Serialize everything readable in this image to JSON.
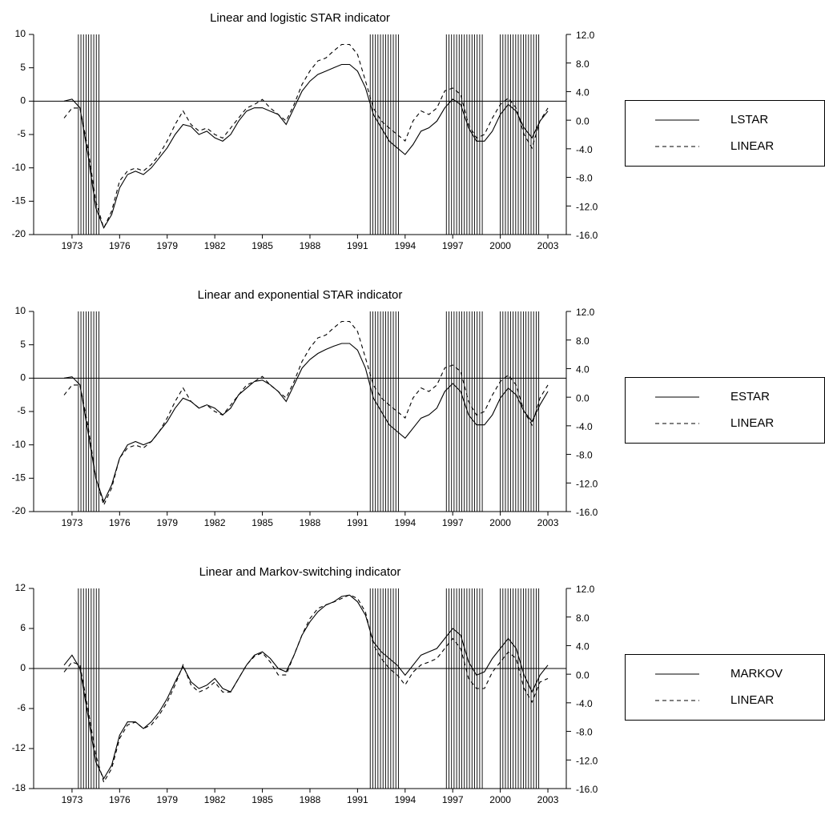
{
  "chart_data": [
    {
      "type": "line",
      "title": "Linear and logistic STAR indicator",
      "x": [
        1972.5,
        1973,
        1973.5,
        1974,
        1974.5,
        1975,
        1975.5,
        1976,
        1976.5,
        1977,
        1977.5,
        1978,
        1978.5,
        1979,
        1979.5,
        1980,
        1980.5,
        1981,
        1981.5,
        1982,
        1982.5,
        1983,
        1983.5,
        1984,
        1984.5,
        1985,
        1985.5,
        1986,
        1986.5,
        1987,
        1987.5,
        1988,
        1988.5,
        1989,
        1989.5,
        1990,
        1990.5,
        1991,
        1991.5,
        1992,
        1992.5,
        1993,
        1993.5,
        1994,
        1994.5,
        1995,
        1995.5,
        1996,
        1996.5,
        1997,
        1997.5,
        1998,
        1998.5,
        1999,
        1999.5,
        2000,
        2000.5,
        2001,
        2001.5,
        2002,
        2002.5,
        2003
      ],
      "xlim": [
        1970.58,
        2004.16
      ],
      "xticks": [
        1973,
        1976,
        1979,
        1982,
        1985,
        1988,
        1991,
        1994,
        1997,
        2000,
        2003
      ],
      "ylim": [
        -20,
        10
      ],
      "yticks": [
        -20,
        -15,
        -10,
        -5,
        0,
        5,
        10
      ],
      "y2lim": [
        -16,
        12
      ],
      "y2ticks": [
        {
          "value": -16,
          "label": "-16.0"
        },
        {
          "value": -12,
          "label": "-12.0"
        },
        {
          "value": -8,
          "label": "-8.0"
        },
        {
          "value": -4,
          "label": "-4.0"
        },
        {
          "value": 0,
          "label": "0.0"
        },
        {
          "value": 4,
          "label": "4.0"
        },
        {
          "value": 8,
          "label": "8.0"
        },
        {
          "value": 12,
          "label": "12.0"
        }
      ],
      "reference_line": 0,
      "legend": "right",
      "shaded": [
        [
          1973.4,
          1974.7
        ],
        [
          1991.8,
          1993.6
        ],
        [
          1996.6,
          1999.0
        ],
        [
          2000.0,
          2002.5
        ]
      ],
      "series": [
        {
          "name": "LSTAR",
          "color": "#000000",
          "dash": "solid",
          "values": [
            0,
            0.3,
            -1,
            -8,
            -16,
            -19,
            -17,
            -13,
            -11,
            -10.5,
            -11,
            -10,
            -8.5,
            -7,
            -5,
            -3.5,
            -3.8,
            -5,
            -4.5,
            -5.5,
            -6,
            -5,
            -3,
            -1.5,
            -1,
            -1,
            -1.5,
            -2,
            -3.5,
            -1,
            1.5,
            3,
            4,
            4.5,
            5,
            5.5,
            5.5,
            4.5,
            2,
            -2,
            -4,
            -6,
            -7,
            -8,
            -6.5,
            -4.5,
            -4,
            -3,
            -1,
            0.3,
            -0.5,
            -4,
            -6,
            -6,
            -4.5,
            -2,
            -0.5,
            -1.5,
            -4,
            -5.5,
            -3,
            -1.5
          ]
        },
        {
          "name": "LINEAR",
          "color": "#000000",
          "dash": "dashed",
          "axis": "y2",
          "values": [
            0.3,
            1.7,
            1.7,
            -3.9,
            -11.3,
            -15.1,
            -12.7,
            -8.5,
            -7.1,
            -6.7,
            -7.1,
            -6.2,
            -4.8,
            -2.9,
            -0.6,
            1.3,
            -0.6,
            -1.5,
            -1.1,
            -2.0,
            -2.5,
            -1.1,
            0.3,
            1.7,
            2.2,
            2.9,
            1.7,
            0.8,
            -0.1,
            2.2,
            5.0,
            6.9,
            8.3,
            8.7,
            9.7,
            10.6,
            10.6,
            9.2,
            5.5,
            1.7,
            -0.1,
            -1.1,
            -2.0,
            -2.9,
            -0.1,
            1.3,
            0.8,
            1.7,
            4.1,
            4.5,
            3.6,
            -0.6,
            -2.5,
            -2.0,
            0.3,
            2.2,
            3.1,
            1.7,
            -2.0,
            -3.9,
            -0.1,
            1.7
          ]
        }
      ]
    },
    {
      "type": "line",
      "title": "Linear and exponential STAR indicator",
      "x": [
        1972.5,
        1973,
        1973.5,
        1974,
        1974.5,
        1975,
        1975.5,
        1976,
        1976.5,
        1977,
        1977.5,
        1978,
        1978.5,
        1979,
        1979.5,
        1980,
        1980.5,
        1981,
        1981.5,
        1982,
        1982.5,
        1983,
        1983.5,
        1984,
        1984.5,
        1985,
        1985.5,
        1986,
        1986.5,
        1987,
        1987.5,
        1988,
        1988.5,
        1989,
        1989.5,
        1990,
        1990.5,
        1991,
        1991.5,
        1992,
        1992.5,
        1993,
        1993.5,
        1994,
        1994.5,
        1995,
        1995.5,
        1996,
        1996.5,
        1997,
        1997.5,
        1998,
        1998.5,
        1999,
        1999.5,
        2000,
        2000.5,
        2001,
        2001.5,
        2002,
        2002.5,
        2003
      ],
      "xlim": [
        1970.58,
        2004.16
      ],
      "xticks": [
        1973,
        1976,
        1979,
        1982,
        1985,
        1988,
        1991,
        1994,
        1997,
        2000,
        2003
      ],
      "ylim": [
        -20,
        10
      ],
      "yticks": [
        -20,
        -15,
        -10,
        -5,
        0,
        5,
        10
      ],
      "y2lim": [
        -16,
        12
      ],
      "y2ticks": [
        {
          "value": -16,
          "label": "-16.0"
        },
        {
          "value": -12,
          "label": "-12.0"
        },
        {
          "value": -8,
          "label": "-8.0"
        },
        {
          "value": -4,
          "label": "-4.0"
        },
        {
          "value": 0,
          "label": "0.0"
        },
        {
          "value": 4,
          "label": "4.0"
        },
        {
          "value": 8,
          "label": "8.0"
        },
        {
          "value": 12,
          "label": "12.0"
        }
      ],
      "reference_line": 0,
      "legend": "right",
      "shaded": [
        [
          1973.4,
          1974.7
        ],
        [
          1991.8,
          1993.6
        ],
        [
          1996.6,
          1999.0
        ],
        [
          2000.0,
          2002.5
        ]
      ],
      "series": [
        {
          "name": "ESTAR",
          "color": "#000000",
          "dash": "solid",
          "values": [
            0,
            0.2,
            -1,
            -8,
            -15,
            -18.5,
            -16,
            -12,
            -10,
            -9.5,
            -10,
            -9.5,
            -8,
            -6.5,
            -4.5,
            -3,
            -3.5,
            -4.5,
            -4,
            -4.5,
            -5.5,
            -4.5,
            -2.5,
            -1.5,
            -0.5,
            -0.3,
            -1,
            -2,
            -3.5,
            -1,
            1.5,
            2.8,
            3.7,
            4.3,
            4.8,
            5.2,
            5.2,
            4.2,
            1.5,
            -3,
            -5,
            -7,
            -8,
            -9,
            -7.5,
            -6,
            -5.5,
            -4.5,
            -2,
            -0.8,
            -2,
            -5.5,
            -7,
            -7,
            -5.5,
            -3,
            -1.5,
            -2.5,
            -5,
            -6.5,
            -4,
            -2
          ]
        },
        {
          "name": "LINEAR",
          "color": "#000000",
          "dash": "dashed",
          "axis": "y2",
          "values": [
            0.3,
            1.7,
            1.7,
            -3.9,
            -11.3,
            -15.1,
            -12.7,
            -8.5,
            -7.1,
            -6.7,
            -7.1,
            -6.2,
            -4.8,
            -2.9,
            -0.6,
            1.3,
            -0.6,
            -1.5,
            -1.1,
            -2.0,
            -2.5,
            -1.1,
            0.3,
            1.7,
            2.2,
            2.9,
            1.7,
            0.8,
            -0.1,
            2.2,
            5.0,
            6.9,
            8.3,
            8.7,
            9.7,
            10.6,
            10.6,
            9.2,
            5.5,
            1.7,
            -0.1,
            -1.1,
            -2.0,
            -2.9,
            -0.1,
            1.3,
            0.8,
            1.7,
            4.1,
            4.5,
            3.6,
            -0.6,
            -2.5,
            -2.0,
            0.3,
            2.2,
            3.1,
            1.7,
            -2.0,
            -3.9,
            -0.1,
            1.7
          ]
        }
      ]
    },
    {
      "type": "line",
      "title": "Linear and Markov-switching indicator",
      "x": [
        1972.5,
        1973,
        1973.5,
        1974,
        1974.5,
        1975,
        1975.5,
        1976,
        1976.5,
        1977,
        1977.5,
        1978,
        1978.5,
        1979,
        1979.5,
        1980,
        1980.5,
        1981,
        1981.5,
        1982,
        1982.5,
        1983,
        1983.5,
        1984,
        1984.5,
        1985,
        1985.5,
        1986,
        1986.5,
        1987,
        1987.5,
        1988,
        1988.5,
        1989,
        1989.5,
        1990,
        1990.5,
        1991,
        1991.5,
        1992,
        1992.5,
        1993,
        1993.5,
        1994,
        1994.5,
        1995,
        1995.5,
        1996,
        1996.5,
        1997,
        1997.5,
        1998,
        1998.5,
        1999,
        1999.5,
        2000,
        2000.5,
        2001,
        2001.5,
        2002,
        2002.5,
        2003
      ],
      "xlim": [
        1970.58,
        2004.16
      ],
      "xticks": [
        1973,
        1976,
        1979,
        1982,
        1985,
        1988,
        1991,
        1994,
        1997,
        2000,
        2003
      ],
      "ylim": [
        -18,
        12
      ],
      "yticks": [
        -18,
        -12,
        -6,
        0,
        6,
        12
      ],
      "y2lim": [
        -16,
        12
      ],
      "y2ticks": [
        {
          "value": -16,
          "label": "-16.0"
        },
        {
          "value": -12,
          "label": "-12.0"
        },
        {
          "value": -8,
          "label": "-8.0"
        },
        {
          "value": -4,
          "label": "-4.0"
        },
        {
          "value": 0,
          "label": "0.0"
        },
        {
          "value": 4,
          "label": "4.0"
        },
        {
          "value": 8,
          "label": "8.0"
        },
        {
          "value": 12,
          "label": "12.0"
        }
      ],
      "reference_line": 0,
      "legend": "right",
      "shaded": [
        [
          1973.4,
          1974.7
        ],
        [
          1991.8,
          1993.6
        ],
        [
          1996.6,
          1999.0
        ],
        [
          2000.0,
          2002.5
        ]
      ],
      "series": [
        {
          "name": "MARKOV",
          "color": "#000000",
          "dash": "solid",
          "values": [
            0.5,
            2,
            0,
            -7,
            -14,
            -16.5,
            -14.5,
            -10,
            -8,
            -8,
            -9,
            -8,
            -6.5,
            -4.5,
            -2,
            0.3,
            -2,
            -3,
            -2.5,
            -1.5,
            -3,
            -3.5,
            -1.5,
            0.5,
            2,
            2.5,
            1.5,
            0,
            -0.5,
            2,
            5,
            7,
            8.5,
            9.5,
            10,
            10.8,
            11,
            10,
            8,
            4,
            2.5,
            1.5,
            0.5,
            -1,
            0.5,
            2,
            2.5,
            3,
            4.5,
            6,
            5,
            1,
            -1,
            -0.5,
            1.5,
            3,
            4.5,
            3,
            -1,
            -3.5,
            -1,
            0.5
          ]
        },
        {
          "name": "LINEAR",
          "color": "#000000",
          "dash": "dashed",
          "axis": "y2",
          "values": [
            0.3,
            1.7,
            1.3,
            -4.8,
            -11.3,
            -15.1,
            -13.2,
            -9.0,
            -7.1,
            -6.7,
            -7.6,
            -7.1,
            -5.7,
            -3.9,
            -1.5,
            1.3,
            -1.5,
            -2.5,
            -2.0,
            -1.1,
            -2.5,
            -2.5,
            -0.6,
            1.3,
            2.5,
            3.0,
            1.7,
            -0.1,
            -0.1,
            2.7,
            5.5,
            7.8,
            9.2,
            9.7,
            10.1,
            10.6,
            11.1,
            10.6,
            8.7,
            4.1,
            2.2,
            0.8,
            -0.1,
            -1.5,
            0.3,
            1.3,
            1.7,
            2.2,
            3.6,
            5.0,
            3.6,
            -0.6,
            -2.0,
            -2.0,
            0.3,
            1.7,
            3.1,
            2.2,
            -2.0,
            -3.9,
            -1.1,
            -0.6
          ]
        }
      ]
    }
  ]
}
